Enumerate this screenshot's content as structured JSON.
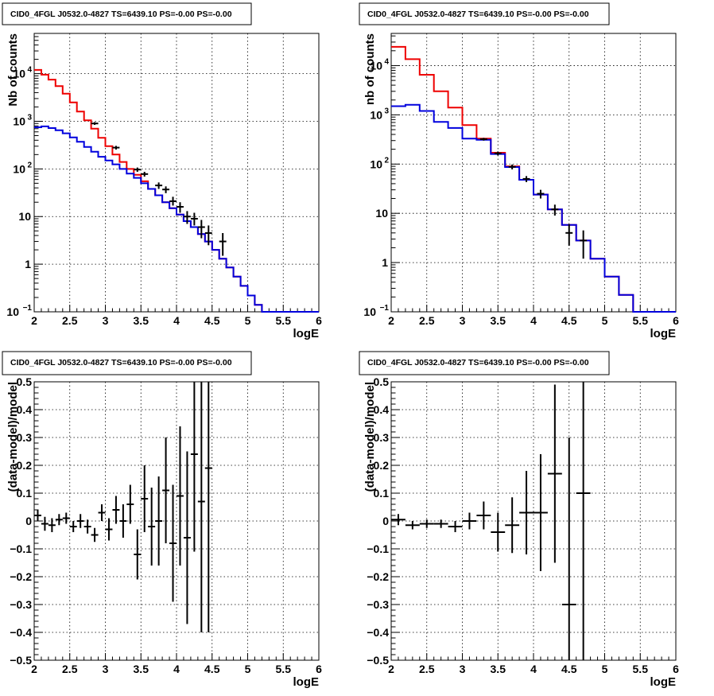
{
  "chart_data": [
    {
      "type": "line",
      "title": "CID0_4FGL J0532.0-4827 TS=6439.10 PS=-0.00 PS=-0.00",
      "xlabel": "logE",
      "ylabel": "Nb of counts",
      "xlim": [
        2,
        6
      ],
      "ylim": [
        0.1,
        70000
      ],
      "yscale": "log",
      "grid": true,
      "xticks": [
        "2",
        "2.5",
        "3",
        "3.5",
        "4",
        "4.5",
        "5",
        "5.5",
        "6"
      ],
      "yticks": [
        {
          "value": 0.1,
          "base": "10",
          "exp": "−1"
        },
        {
          "value": 1,
          "label": "1"
        },
        {
          "value": 10,
          "label": "10"
        },
        {
          "value": 100,
          "base": "10",
          "exp": "2"
        },
        {
          "value": 1000,
          "base": "10",
          "exp": "3"
        },
        {
          "value": 10000,
          "base": "10",
          "exp": "4"
        }
      ],
      "bin_edges_start": 2.0,
      "bin_width": 0.1,
      "series": [
        {
          "color": "#ee0000",
          "values": [
            12000,
            9500,
            7500,
            5500,
            3800,
            2500,
            1600,
            1050,
            700,
            450,
            300,
            200,
            140,
            100,
            75,
            55,
            38,
            28,
            20,
            15,
            11,
            8,
            6,
            4.3,
            3.0,
            2.0,
            1.3,
            0.85,
            0.55,
            0.35,
            0.22,
            0.14,
            0.1,
            0.1,
            0.1,
            0.1,
            0.1,
            0.1,
            0.1,
            0.1
          ]
        },
        {
          "color": "#0000dd",
          "values": [
            750,
            780,
            720,
            650,
            560,
            460,
            370,
            290,
            230,
            180,
            150,
            125,
            100,
            80,
            65,
            50,
            38,
            28,
            20,
            15,
            11,
            8,
            6,
            4.3,
            3.0,
            2.0,
            1.3,
            0.85,
            0.55,
            0.35,
            0.22,
            0.14,
            0.1,
            0.1,
            0.1,
            0.1,
            0.1,
            0.1,
            0.1,
            0.1
          ]
        }
      ],
      "points": [
        {
          "x": 2.85,
          "y": 900,
          "ylo": 840,
          "yhi": 960
        },
        {
          "x": 3.15,
          "y": 280,
          "ylo": 255,
          "yhi": 305
        },
        {
          "x": 3.45,
          "y": 97,
          "ylo": 87,
          "yhi": 107
        },
        {
          "x": 3.55,
          "y": 78,
          "ylo": 69,
          "yhi": 87
        },
        {
          "x": 3.75,
          "y": 45,
          "ylo": 38,
          "yhi": 52
        },
        {
          "x": 3.85,
          "y": 37,
          "ylo": 31,
          "yhi": 43
        },
        {
          "x": 3.95,
          "y": 21,
          "ylo": 17,
          "yhi": 26
        },
        {
          "x": 4.05,
          "y": 16,
          "ylo": 12,
          "yhi": 20
        },
        {
          "x": 4.15,
          "y": 10,
          "ylo": 7,
          "yhi": 13
        },
        {
          "x": 4.25,
          "y": 9,
          "ylo": 6.5,
          "yhi": 12
        },
        {
          "x": 4.35,
          "y": 6,
          "ylo": 3.5,
          "yhi": 8.5
        },
        {
          "x": 4.45,
          "y": 4.5,
          "ylo": 2.5,
          "yhi": 6.5
        },
        {
          "x": 4.65,
          "y": 3,
          "ylo": 1.5,
          "yhi": 4.5
        }
      ]
    },
    {
      "type": "line",
      "title": "CID0_4FGL J0532.0-4827 TS=6439.10 PS=-0.00 PS=-0.00",
      "xlabel": "logE",
      "ylabel": "nb of counts",
      "xlim": [
        2,
        6
      ],
      "ylim": [
        0.1,
        45000
      ],
      "yscale": "log",
      "grid": true,
      "xticks": [
        "2",
        "2.5",
        "3",
        "3.5",
        "4",
        "4.5",
        "5",
        "5.5",
        "6"
      ],
      "yticks": [
        {
          "value": 0.1,
          "base": "10",
          "exp": "−1"
        },
        {
          "value": 1,
          "label": "1"
        },
        {
          "value": 10,
          "label": "10"
        },
        {
          "value": 100,
          "base": "10",
          "exp": "2"
        },
        {
          "value": 1000,
          "base": "10",
          "exp": "3"
        },
        {
          "value": 10000,
          "base": "10",
          "exp": "4"
        }
      ],
      "bin_edges_start": 2.0,
      "bin_width": 0.2,
      "series": [
        {
          "color": "#ee0000",
          "values": [
            24000,
            13500,
            6500,
            3000,
            1400,
            620,
            330,
            170,
            90,
            48,
            24,
            12,
            5.8,
            2.8,
            1.2,
            0.52,
            0.22,
            0.1,
            0.1,
            0.1
          ]
        },
        {
          "color": "#0000dd",
          "values": [
            1500,
            1600,
            1200,
            720,
            540,
            330,
            310,
            160,
            87,
            48,
            24,
            12,
            5.8,
            2.8,
            1.2,
            0.52,
            0.22,
            0.1,
            0.1,
            0.1
          ]
        }
      ],
      "points": [
        {
          "x": 3.3,
          "y": 320,
          "ylo": 300,
          "yhi": 340
        },
        {
          "x": 3.5,
          "y": 165,
          "ylo": 150,
          "yhi": 180
        },
        {
          "x": 3.7,
          "y": 88,
          "ylo": 78,
          "yhi": 98
        },
        {
          "x": 3.9,
          "y": 50,
          "ylo": 43,
          "yhi": 57
        },
        {
          "x": 4.1,
          "y": 25,
          "ylo": 20,
          "yhi": 30
        },
        {
          "x": 4.3,
          "y": 12,
          "ylo": 9,
          "yhi": 15
        },
        {
          "x": 4.5,
          "y": 4,
          "ylo": 2.2,
          "yhi": 6
        },
        {
          "x": 4.7,
          "y": 2.8,
          "ylo": 1.2,
          "yhi": 4.5
        }
      ]
    },
    {
      "type": "scatter",
      "title": "CID0_4FGL J0532.0-4827 TS=6439.10 PS=-0.00 PS=-0.00",
      "xlabel": "logE",
      "ylabel": "(data-model)/model",
      "xlim": [
        2,
        6
      ],
      "ylim": [
        -0.5,
        0.5
      ],
      "grid": true,
      "xticks": [
        "2",
        "2.5",
        "3",
        "3.5",
        "4",
        "4.5",
        "5",
        "5.5",
        "6"
      ],
      "yticks": [
        "−0.5",
        "−0.4",
        "−0.3",
        "−0.2",
        "−0.1",
        "0",
        "0.1",
        "0.2",
        "0.3",
        "0.4",
        "0.5"
      ],
      "xerr": 0.05,
      "points": [
        {
          "x": 2.05,
          "y": 0.02,
          "yerr": 0.02
        },
        {
          "x": 2.15,
          "y": -0.01,
          "yerr": 0.025
        },
        {
          "x": 2.25,
          "y": -0.015,
          "yerr": 0.025
        },
        {
          "x": 2.35,
          "y": 0.005,
          "yerr": 0.02
        },
        {
          "x": 2.45,
          "y": 0.01,
          "yerr": 0.02
        },
        {
          "x": 2.55,
          "y": -0.02,
          "yerr": 0.02
        },
        {
          "x": 2.65,
          "y": 0.0,
          "yerr": 0.025
        },
        {
          "x": 2.75,
          "y": -0.02,
          "yerr": 0.025
        },
        {
          "x": 2.85,
          "y": -0.05,
          "yerr": 0.025
        },
        {
          "x": 2.95,
          "y": 0.03,
          "yerr": 0.03
        },
        {
          "x": 3.05,
          "y": -0.03,
          "yerr": 0.04
        },
        {
          "x": 3.15,
          "y": 0.04,
          "yerr": 0.05
        },
        {
          "x": 3.25,
          "y": 0.0,
          "yerr": 0.06
        },
        {
          "x": 3.35,
          "y": 0.06,
          "yerr": 0.07
        },
        {
          "x": 3.45,
          "y": -0.12,
          "yerr": 0.09
        },
        {
          "x": 3.55,
          "y": 0.08,
          "yerr": 0.12
        },
        {
          "x": 3.65,
          "y": -0.02,
          "yerr": 0.14
        },
        {
          "x": 3.75,
          "y": 0.0,
          "yerr": 0.16
        },
        {
          "x": 3.85,
          "y": 0.11,
          "yerr": 0.19
        },
        {
          "x": 3.95,
          "y": -0.08,
          "yerr": 0.21
        },
        {
          "x": 4.05,
          "y": 0.09,
          "yerr": 0.25
        },
        {
          "x": 4.15,
          "y": -0.06,
          "yerr": 0.31
        },
        {
          "x": 4.25,
          "y": 0.24,
          "yerr": 0.35
        },
        {
          "x": 4.35,
          "y": 0.07,
          "yerr": 0.47
        },
        {
          "x": 4.45,
          "y": 0.19,
          "yerr": 0.59
        }
      ]
    },
    {
      "type": "scatter",
      "title": "CID0_4FGL J0532.0-4827 TS=6439.10 PS=-0.00 PS=-0.00",
      "xlabel": "logE",
      "ylabel": "(data-model)/model",
      "xlim": [
        2,
        6
      ],
      "ylim": [
        -0.5,
        0.5
      ],
      "grid": true,
      "xticks": [
        "2",
        "2.5",
        "3",
        "3.5",
        "4",
        "4.5",
        "5",
        "5.5",
        "6"
      ],
      "yticks": [
        "−0.5",
        "−0.4",
        "−0.3",
        "−0.2",
        "−0.1",
        "0",
        "0.1",
        "0.2",
        "0.3",
        "0.4",
        "0.5"
      ],
      "xerr": 0.1,
      "points": [
        {
          "x": 2.1,
          "y": 0.005,
          "yerr": 0.02
        },
        {
          "x": 2.3,
          "y": -0.015,
          "yerr": 0.015
        },
        {
          "x": 2.5,
          "y": -0.01,
          "yerr": 0.015
        },
        {
          "x": 2.7,
          "y": -0.01,
          "yerr": 0.015
        },
        {
          "x": 2.9,
          "y": -0.02,
          "yerr": 0.02
        },
        {
          "x": 3.1,
          "y": 0.0,
          "yerr": 0.03
        },
        {
          "x": 3.3,
          "y": 0.02,
          "yerr": 0.05
        },
        {
          "x": 3.5,
          "y": -0.04,
          "yerr": 0.07
        },
        {
          "x": 3.7,
          "y": -0.015,
          "yerr": 0.1
        },
        {
          "x": 3.9,
          "y": 0.03,
          "yerr": 0.15
        },
        {
          "x": 4.1,
          "y": 0.03,
          "yerr": 0.21
        },
        {
          "x": 4.3,
          "y": 0.17,
          "yerr": 0.32
        },
        {
          "x": 4.5,
          "y": -0.3,
          "yerr": 0.6
        },
        {
          "x": 4.7,
          "y": 0.1,
          "yerr": 0.9
        }
      ]
    }
  ]
}
